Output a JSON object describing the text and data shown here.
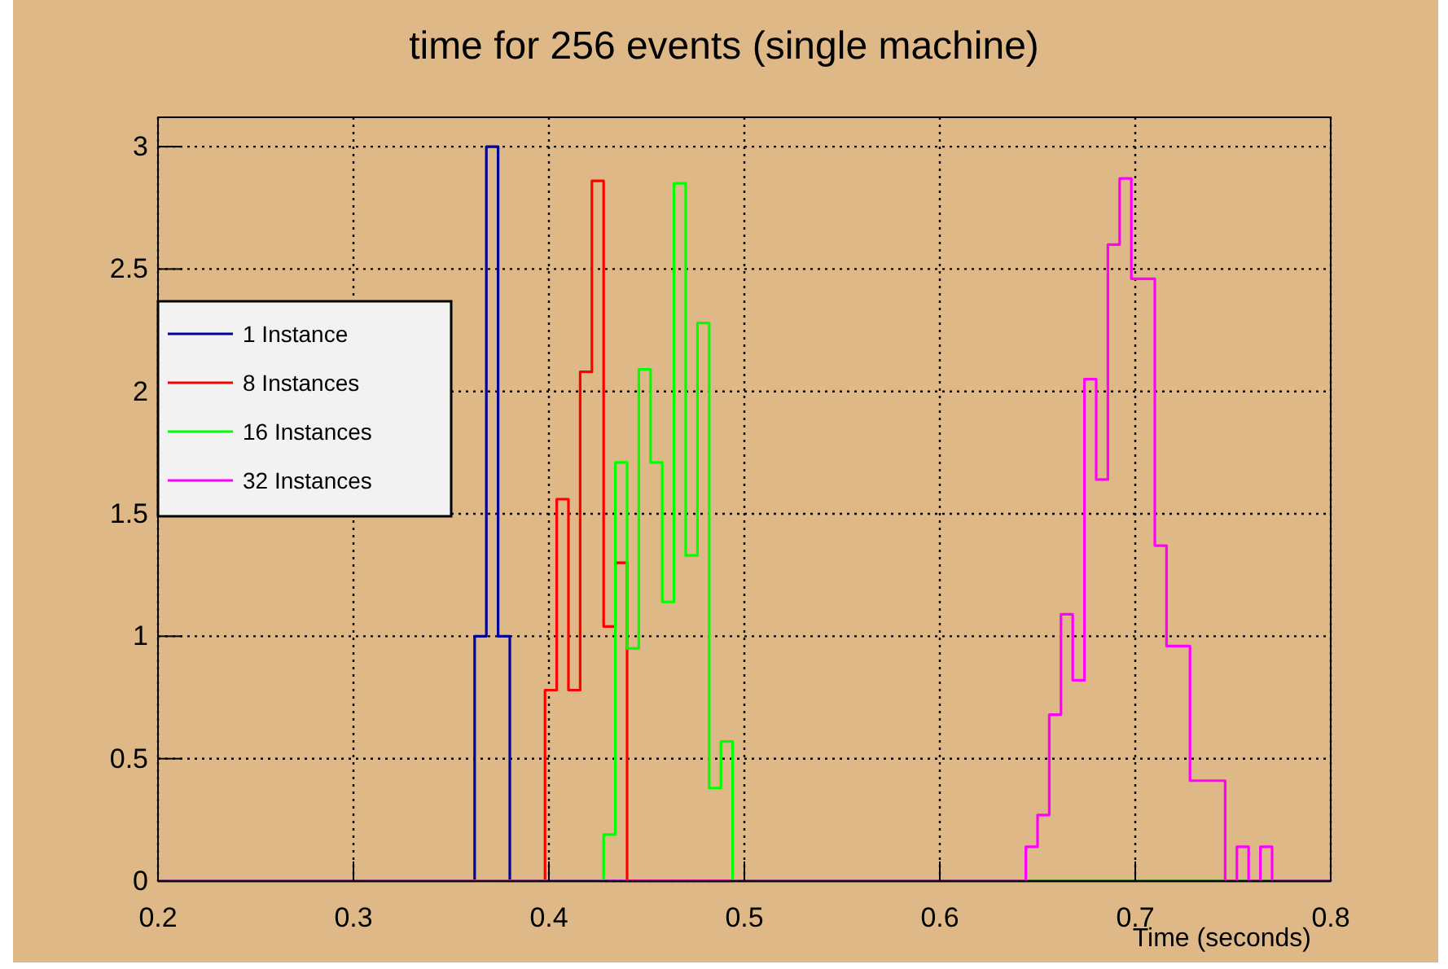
{
  "chart_data": {
    "type": "histogram",
    "title": "time for 256 events (single machine)",
    "xlabel": "Time (seconds)",
    "xlim": [
      0.2,
      0.8
    ],
    "xticks": [
      0.2,
      0.3,
      0.4,
      0.5,
      0.6,
      0.7,
      0.8
    ],
    "ylim": [
      0,
      3.12
    ],
    "yticks": [
      0,
      0.5,
      1,
      1.5,
      2,
      2.5,
      3
    ],
    "grid": true,
    "legend": "top left",
    "bins": [
      0.2,
      0.206,
      0.212,
      0.218,
      0.224,
      0.23,
      0.236,
      0.242,
      0.248,
      0.254,
      0.26,
      0.266,
      0.272,
      0.278,
      0.284,
      0.29,
      0.296,
      0.302,
      0.308,
      0.314,
      0.32,
      0.326,
      0.332,
      0.338,
      0.344,
      0.35,
      0.356,
      0.362,
      0.368,
      0.374,
      0.38,
      0.386,
      0.392,
      0.398,
      0.404,
      0.41,
      0.416,
      0.422,
      0.428,
      0.434,
      0.44,
      0.446,
      0.452,
      0.458,
      0.464,
      0.47,
      0.476,
      0.482,
      0.488,
      0.494,
      0.5,
      0.506,
      0.512,
      0.518,
      0.524,
      0.53,
      0.536,
      0.542,
      0.548,
      0.554,
      0.56,
      0.566,
      0.572,
      0.578,
      0.584,
      0.59,
      0.596,
      0.602,
      0.608,
      0.614,
      0.62,
      0.626,
      0.632,
      0.638,
      0.644,
      0.65,
      0.656,
      0.662,
      0.668,
      0.674,
      0.68,
      0.686,
      0.692,
      0.698,
      0.704,
      0.71,
      0.716,
      0.722,
      0.728,
      0.734,
      0.74,
      0.746,
      0.752,
      0.758,
      0.764,
      0.77,
      0.776,
      0.782,
      0.788,
      0.794,
      0.8
    ],
    "series": [
      {
        "name": "1 Instance",
        "color": "#000099",
        "values": [
          0,
          0,
          0,
          0,
          0,
          0,
          0,
          0,
          0,
          0,
          0,
          0,
          0,
          0,
          0,
          0,
          0,
          0,
          0,
          0,
          0,
          0,
          0,
          0,
          0,
          0,
          0,
          1,
          3,
          1,
          0,
          0,
          0,
          0,
          0,
          0,
          0,
          0,
          0,
          0,
          0,
          0,
          0,
          0,
          0,
          0,
          0,
          0,
          0,
          0,
          0,
          0,
          0,
          0,
          0,
          0,
          0,
          0,
          0,
          0,
          0,
          0,
          0,
          0,
          0,
          0,
          0,
          0,
          0,
          0,
          0,
          0,
          0,
          0,
          0,
          0,
          0,
          0,
          0,
          0,
          0,
          0,
          0,
          0,
          0,
          0,
          0,
          0,
          0,
          0,
          0,
          0,
          0,
          0,
          0,
          0,
          0,
          0,
          0,
          0
        ]
      },
      {
        "name": "8 Instances",
        "color": "#ff0000",
        "values": [
          0,
          0,
          0,
          0,
          0,
          0,
          0,
          0,
          0,
          0,
          0,
          0,
          0,
          0,
          0,
          0,
          0,
          0,
          0,
          0,
          0,
          0,
          0,
          0,
          0,
          0,
          0,
          0,
          0,
          0,
          0,
          0,
          0,
          0.78,
          1.56,
          0.78,
          2.08,
          2.86,
          1.04,
          1.3,
          0,
          0,
          0,
          0,
          0,
          0,
          0,
          0,
          0,
          0,
          0,
          0,
          0,
          0,
          0,
          0,
          0,
          0,
          0,
          0,
          0,
          0,
          0,
          0,
          0,
          0,
          0,
          0,
          0,
          0,
          0,
          0,
          0,
          0,
          0,
          0,
          0,
          0,
          0,
          0,
          0,
          0,
          0,
          0,
          0,
          0,
          0,
          0,
          0,
          0,
          0,
          0,
          0,
          0,
          0,
          0,
          0,
          0,
          0,
          0
        ]
      },
      {
        "name": "16 Instances",
        "color": "#00ff00",
        "values": [
          0,
          0,
          0,
          0,
          0,
          0,
          0,
          0,
          0,
          0,
          0,
          0,
          0,
          0,
          0,
          0,
          0,
          0,
          0,
          0,
          0,
          0,
          0,
          0,
          0,
          0,
          0,
          0,
          0,
          0,
          0,
          0,
          0,
          0,
          0,
          0,
          0,
          0,
          0.19,
          1.71,
          0.95,
          2.09,
          1.71,
          1.14,
          2.85,
          1.33,
          2.28,
          0.38,
          0.57,
          0,
          0,
          0,
          0,
          0,
          0,
          0,
          0,
          0,
          0,
          0,
          0,
          0,
          0,
          0,
          0,
          0,
          0,
          0,
          0,
          0,
          0,
          0,
          0,
          0,
          0,
          0,
          0,
          0,
          0,
          0,
          0,
          0,
          0,
          0,
          0,
          0,
          0,
          0,
          0,
          0,
          0,
          0,
          0,
          0,
          0,
          0,
          0,
          0,
          0,
          0
        ]
      },
      {
        "name": "32 Instances",
        "color": "#ff00ff",
        "values": [
          0,
          0,
          0,
          0,
          0,
          0,
          0,
          0,
          0,
          0,
          0,
          0,
          0,
          0,
          0,
          0,
          0,
          0,
          0,
          0,
          0,
          0,
          0,
          0,
          0,
          0,
          0,
          0,
          0,
          0,
          0,
          0,
          0,
          0,
          0,
          0,
          0,
          0,
          0,
          0,
          0,
          0,
          0,
          0,
          0,
          0,
          0,
          0,
          0,
          0,
          0,
          0,
          0,
          0,
          0,
          0,
          0,
          0,
          0,
          0,
          0,
          0,
          0,
          0,
          0,
          0,
          0,
          0,
          0,
          0,
          0,
          0,
          0,
          0,
          0.14,
          0.27,
          0.68,
          1.09,
          0.82,
          2.05,
          1.64,
          2.6,
          2.87,
          2.46,
          2.46,
          1.37,
          0.96,
          0.96,
          0.41,
          0.41,
          0.41,
          0,
          0.14,
          0,
          0.14,
          0,
          0,
          0,
          0,
          0
        ]
      }
    ]
  }
}
